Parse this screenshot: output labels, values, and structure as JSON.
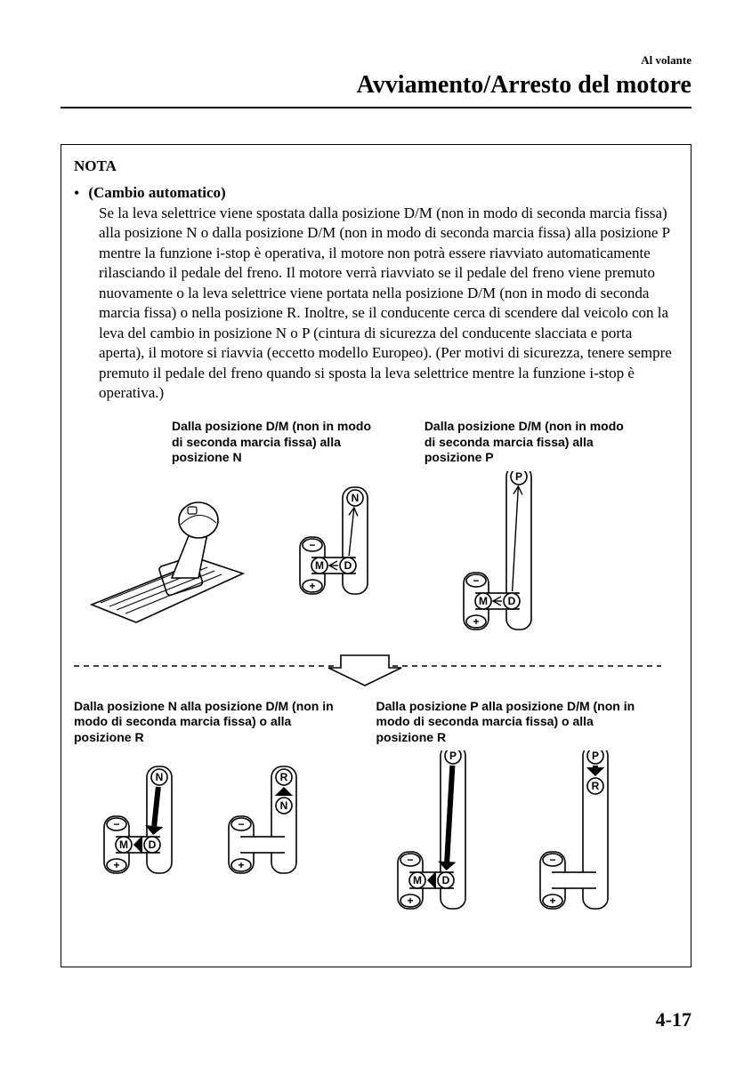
{
  "header": {
    "section_label": "Al volante",
    "page_title": "Avviamento/Arresto del motore"
  },
  "nota": {
    "label": "NOTA",
    "bullet_title": "(Cambio automatico)",
    "body": "Se la leva selettrice viene spostata dalla posizione D/M (non in modo di seconda marcia fissa) alla posizione N o dalla posizione D/M (non in modo di seconda marcia fissa) alla posizione P mentre la funzione i-stop è operativa, il motore non potrà essere riavviato automaticamente rilasciando il pedale del freno. Il motore verrà riavviato se il pedale del freno viene premuto nuovamente o la leva selettrice viene portata nella posizione D/M (non in modo di seconda marcia fissa) o nella posizione R. Inoltre, se il conducente cerca di scendere dal veicolo con la leva del cambio in posizione N o P (cintura di sicurezza del conducente slacciata e porta aperta), il motore si riavvia (eccetto modello Europeo). (Per motivi di sicurezza, tenere sempre premuto il pedale del freno quando si sposta la leva selettrice mentre la funzione i-stop è operativa.)"
  },
  "diagram": {
    "captions": {
      "top_left": "Dalla posizione D/M (non in modo di seconda marcia fissa) alla posizione N",
      "top_right": "Dalla posizione D/M (non in modo di seconda marcia fissa) alla posizione P",
      "bot_left": "Dalla posizione N alla posizione D/M (non in modo di seconda marcia fissa) o alla posizione R",
      "bot_right": "Dalla posizione P alla posizione D/M (non in modo di seconda marcia fissa) o alla posizione R"
    },
    "glyphs": {
      "M": "M",
      "D": "D",
      "N": "N",
      "R": "R",
      "P": "P",
      "plus": "+",
      "minus": "−"
    },
    "style": {
      "stroke": "#000000",
      "fill": "#ffffff",
      "stroke_width": 1.6,
      "font_family": "Arial, Helvetica, sans-serif",
      "dash": "6,5"
    }
  },
  "page_number": "4-17"
}
